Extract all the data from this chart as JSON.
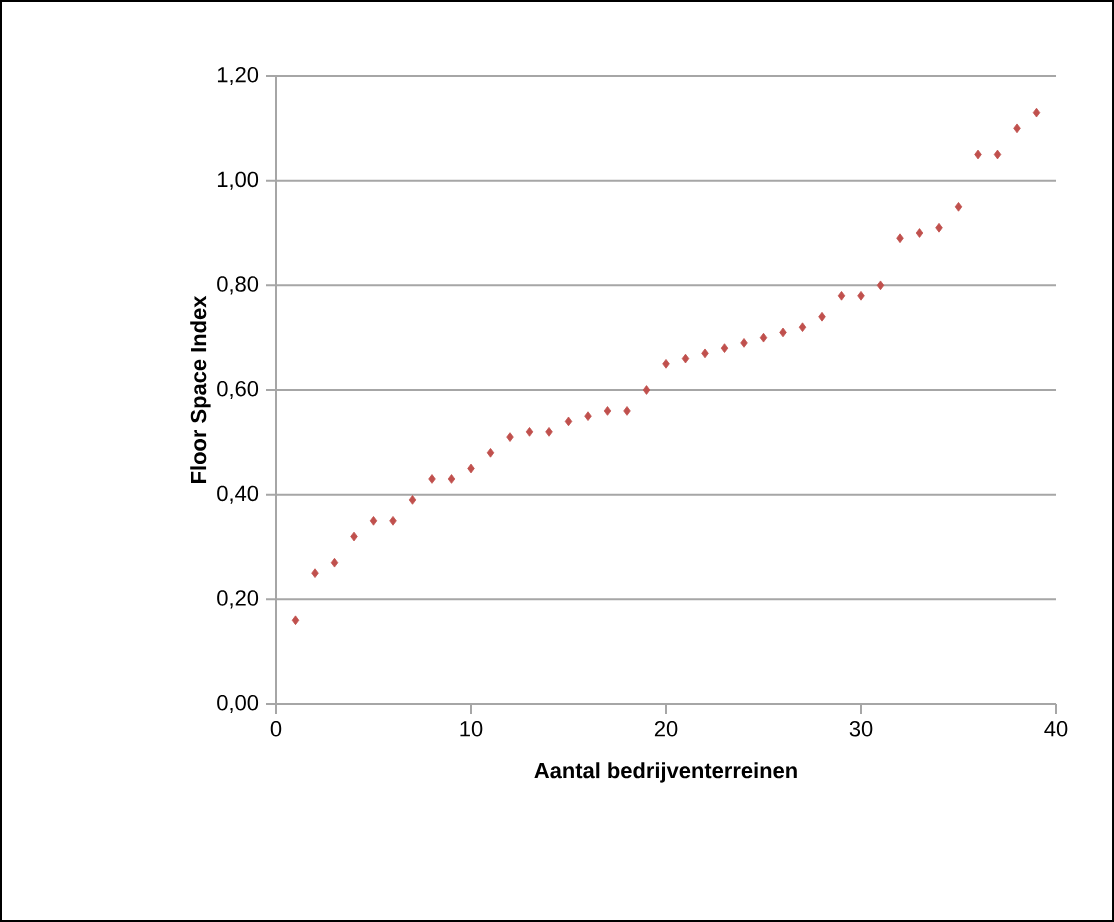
{
  "chart_data": {
    "type": "scatter",
    "xlabel": "Aantal bedrijventerreinen",
    "ylabel": "Floor Space Index",
    "x": [
      1,
      2,
      3,
      4,
      5,
      6,
      7,
      8,
      9,
      10,
      11,
      12,
      13,
      14,
      15,
      16,
      17,
      18,
      19,
      20,
      21,
      22,
      23,
      24,
      25,
      26,
      27,
      28,
      29,
      30,
      31,
      32,
      33,
      34,
      35,
      36,
      37,
      38,
      39
    ],
    "series": [
      {
        "color": "#c0504d",
        "values": [
          0.16,
          0.25,
          0.27,
          0.32,
          0.35,
          0.35,
          0.39,
          0.43,
          0.43,
          0.45,
          0.48,
          0.51,
          0.52,
          0.52,
          0.54,
          0.55,
          0.56,
          0.56,
          0.6,
          0.65,
          0.66,
          0.67,
          0.68,
          0.69,
          0.7,
          0.71,
          0.72,
          0.74,
          0.78,
          0.78,
          0.8,
          0.89,
          0.9,
          0.91,
          0.95,
          1.05,
          1.05,
          1.1,
          1.13
        ]
      }
    ],
    "xlim": [
      0,
      40
    ],
    "xticks": [
      0,
      10,
      20,
      30,
      40
    ],
    "ylim": [
      0,
      1.2
    ],
    "yticks": [
      {
        "value": 0,
        "label": "0,00"
      },
      {
        "value": 0.2,
        "label": "0,20"
      },
      {
        "value": 0.4,
        "label": "0,40"
      },
      {
        "value": 0.6,
        "label": "0,60"
      },
      {
        "value": 0.8,
        "label": "0,80"
      },
      {
        "value": 1.0,
        "label": "1,00"
      },
      {
        "value": 1.2,
        "label": "1,20"
      }
    ],
    "grid": "y",
    "marker": "diamond"
  }
}
